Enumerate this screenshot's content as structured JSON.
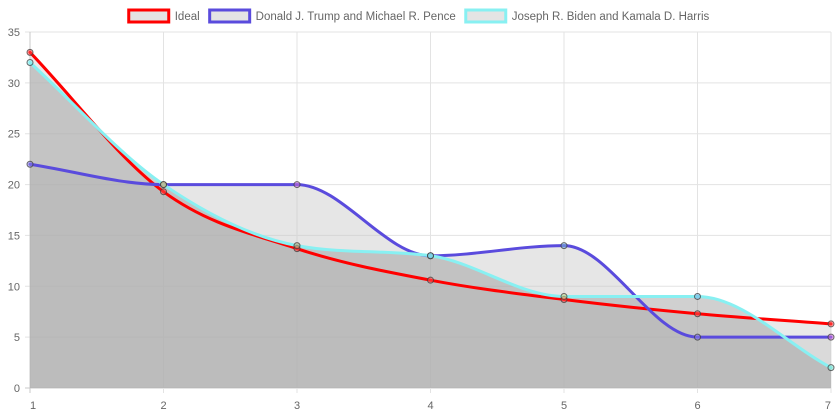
{
  "chart_data": {
    "type": "line",
    "x": [
      1,
      2,
      3,
      4,
      5,
      6,
      7
    ],
    "xlim": [
      1,
      7
    ],
    "ylim": [
      0,
      35
    ],
    "y_ticks": [
      0,
      5,
      10,
      15,
      20,
      25,
      30,
      35
    ],
    "grid": true,
    "legend_position": "top-center",
    "series": [
      {
        "name": "Ideal",
        "values": [
          33.0,
          19.3,
          13.7,
          10.6,
          8.7,
          7.3,
          6.3
        ],
        "color": "#ff0000",
        "fill": "rgba(215,215,215,0.55)",
        "point_colors": [
          "#ff4d4d",
          "#ff4d4d",
          "#ff4d4d",
          "#ff4d4d",
          "#ff4d4d",
          "#ff4d4d",
          "#ff4d4d"
        ]
      },
      {
        "name": "Donald J. Trump and Michael R. Pence",
        "values": [
          22,
          20,
          20,
          13,
          14,
          5,
          5
        ],
        "color": "#5a4bdd",
        "fill": "rgba(200,200,200,0.45)",
        "point_colors": [
          "#8a7fe8",
          "#6a9fb5",
          "#d070d8",
          "#7ab6d8",
          "#7ab6d8",
          "#8a7fe8",
          "#d070d8"
        ]
      },
      {
        "name": "Joseph R. Biden and Kamala D. Harris",
        "values": [
          32,
          20,
          14,
          13,
          9,
          9,
          2
        ],
        "color": "#88f0f2",
        "fill": "rgba(150,150,150,0.45)",
        "point_colors": [
          "#88f0f2",
          "#e8c070",
          "#c0a070",
          "#7ad8e8",
          "#d8d080",
          "#7ab6e8",
          "#88e0d0"
        ]
      }
    ]
  }
}
